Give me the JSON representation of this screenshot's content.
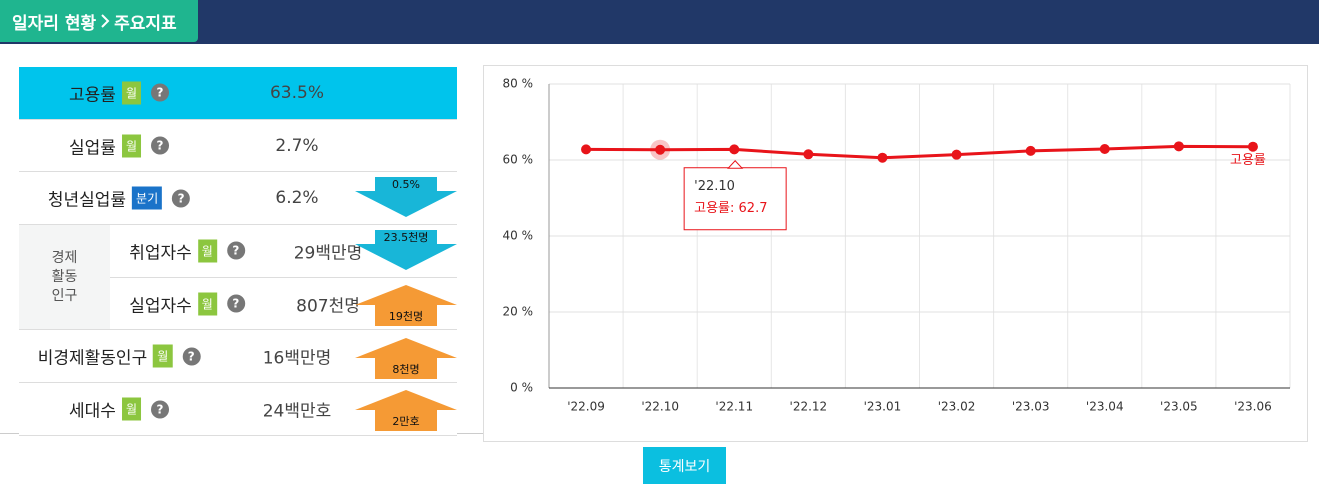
{
  "header": {
    "breadcrumb": [
      "일자리 현황",
      "주요지표"
    ]
  },
  "table": {
    "help_icon": "?",
    "group_label": [
      "경제",
      "활동",
      "인구"
    ],
    "rows": [
      {
        "label": "고용률",
        "badge": "월",
        "badge_color": "#8cc63f",
        "value": "63.5%",
        "highlight": true
      },
      {
        "label": "실업률",
        "badge": "월",
        "badge_color": "#8cc63f",
        "value": "2.7%"
      },
      {
        "label": "청년실업률",
        "badge": "분기",
        "badge_color": "#1a73c9",
        "value": "6.2%",
        "change": "0.5%",
        "direction": "down"
      },
      {
        "label": "취업자수",
        "badge": "월",
        "badge_color": "#8cc63f",
        "value": "29백만명",
        "change": "23.5천명",
        "direction": "down",
        "in_group": true
      },
      {
        "label": "실업자수",
        "badge": "월",
        "badge_color": "#8cc63f",
        "value": "807천명",
        "change": "19천명",
        "direction": "up",
        "in_group": true
      },
      {
        "label": "비경제활동인구",
        "badge": "월",
        "badge_color": "#8cc63f",
        "value": "16백만명",
        "change": "8천명",
        "direction": "up"
      },
      {
        "label": "세대수",
        "badge": "월",
        "badge_color": "#8cc63f",
        "value": "24백만호",
        "change": "2만호",
        "direction": "up"
      }
    ]
  },
  "chart_data": {
    "type": "line",
    "categories": [
      "'22.09",
      "'22.10",
      "'22.11",
      "'22.12",
      "'23.01",
      "'23.02",
      "'23.03",
      "'23.04",
      "'23.05",
      "'23.06"
    ],
    "series": [
      {
        "name": "고용률",
        "color": "#e8141a",
        "values": [
          62.8,
          62.7,
          62.8,
          61.5,
          60.6,
          61.4,
          62.4,
          62.9,
          63.6,
          63.5
        ]
      }
    ],
    "ylim": [
      0,
      80
    ],
    "yticks": [
      {
        "value": 0,
        "label": "0 %"
      },
      {
        "value": 20,
        "label": "20 %"
      },
      {
        "value": 40,
        "label": "40 %"
      },
      {
        "value": 60,
        "label": "60 %"
      },
      {
        "value": 80,
        "label": "80 %"
      }
    ],
    "grid": true,
    "tooltip": {
      "title": "'22.10",
      "text": "고용률: 62.7"
    }
  },
  "button": {
    "label": "통계보기"
  }
}
